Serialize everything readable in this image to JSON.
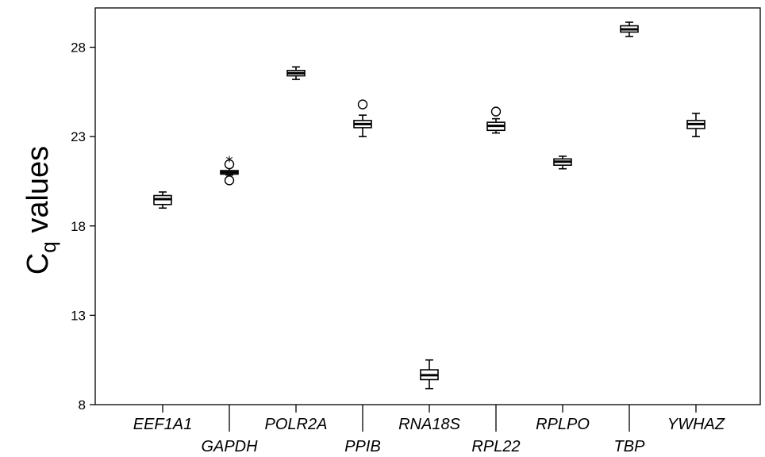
{
  "chart_data": {
    "type": "box",
    "ylabel_main": "C",
    "ylabel_sub": "q",
    "ylabel_rest": " values",
    "ylim": [
      8,
      30.2
    ],
    "yticks": [
      8,
      13,
      18,
      23,
      28
    ],
    "grid": false,
    "categories": [
      "EEF1A1",
      "GAPDH",
      "POLR2A",
      "PPIB",
      "RNA18S",
      "RPL22",
      "RPLPO",
      "TBP",
      "YWHAZ"
    ],
    "boxes": [
      {
        "category": "EEF1A1",
        "min": 19.0,
        "q1": 19.2,
        "median": 19.5,
        "q3": 19.7,
        "max": 19.9,
        "outliers": [],
        "extremes": []
      },
      {
        "category": "GAPDH",
        "min": 20.85,
        "q1": 20.9,
        "median": 21.0,
        "q3": 21.1,
        "max": 21.3,
        "outliers": [
          20.55,
          21.45
        ],
        "extremes": [
          21.75
        ]
      },
      {
        "category": "POLR2A",
        "min": 26.2,
        "q1": 26.4,
        "median": 26.55,
        "q3": 26.7,
        "max": 26.9,
        "outliers": [],
        "extremes": []
      },
      {
        "category": "PPIB",
        "min": 23.0,
        "q1": 23.5,
        "median": 23.7,
        "q3": 23.9,
        "max": 24.2,
        "outliers": [
          24.8
        ],
        "extremes": []
      },
      {
        "category": "RNA18S",
        "min": 8.9,
        "q1": 9.4,
        "median": 9.65,
        "q3": 9.95,
        "max": 10.5,
        "outliers": [],
        "extremes": []
      },
      {
        "category": "RPL22",
        "min": 23.2,
        "q1": 23.35,
        "median": 23.6,
        "q3": 23.8,
        "max": 24.0,
        "outliers": [
          24.4
        ],
        "extremes": []
      },
      {
        "category": "RPLPO",
        "min": 21.2,
        "q1": 21.4,
        "median": 21.6,
        "q3": 21.75,
        "max": 21.9,
        "outliers": [],
        "extremes": []
      },
      {
        "category": "TBP",
        "min": 28.6,
        "q1": 28.85,
        "median": 29.0,
        "q3": 29.2,
        "max": 29.4,
        "outliers": [],
        "extremes": []
      },
      {
        "category": "YWHAZ",
        "min": 23.0,
        "q1": 23.45,
        "median": 23.7,
        "q3": 23.9,
        "max": 24.3,
        "outliers": [],
        "extremes": []
      }
    ]
  }
}
